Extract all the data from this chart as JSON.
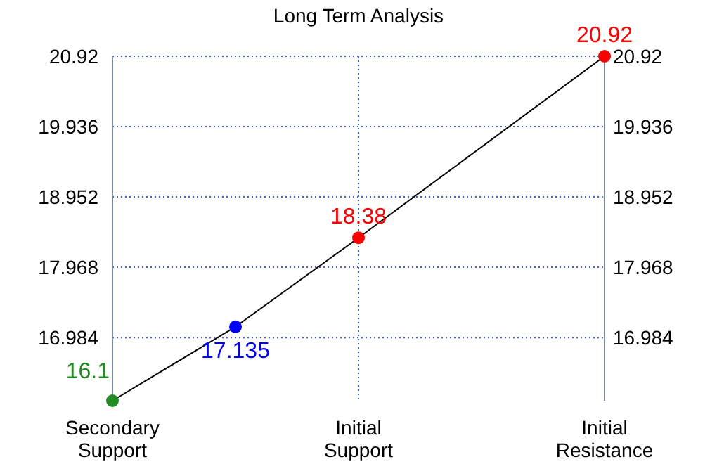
{
  "chart_data": {
    "type": "line",
    "title": "Long Term Analysis",
    "categories": [
      "Secondary Support",
      null,
      "Initial Support",
      null,
      "Initial Resistance"
    ],
    "ylim": [
      16.1,
      20.92
    ],
    "yticks": [
      16.984,
      17.968,
      18.952,
      19.936,
      20.92
    ],
    "y2lim": [
      16.1,
      20.92
    ],
    "y2ticks": [
      16.984,
      17.968,
      18.952,
      19.936,
      20.92
    ],
    "series": [
      {
        "color": "#000000",
        "values": [
          16.1,
          17.135,
          18.38,
          null,
          20.92
        ],
        "colors": [
          "#228b22",
          "#0000ff",
          "#ff0000",
          null,
          "#ff0000"
        ]
      }
    ],
    "marker": "circle",
    "data_labels": true,
    "grid": true
  }
}
